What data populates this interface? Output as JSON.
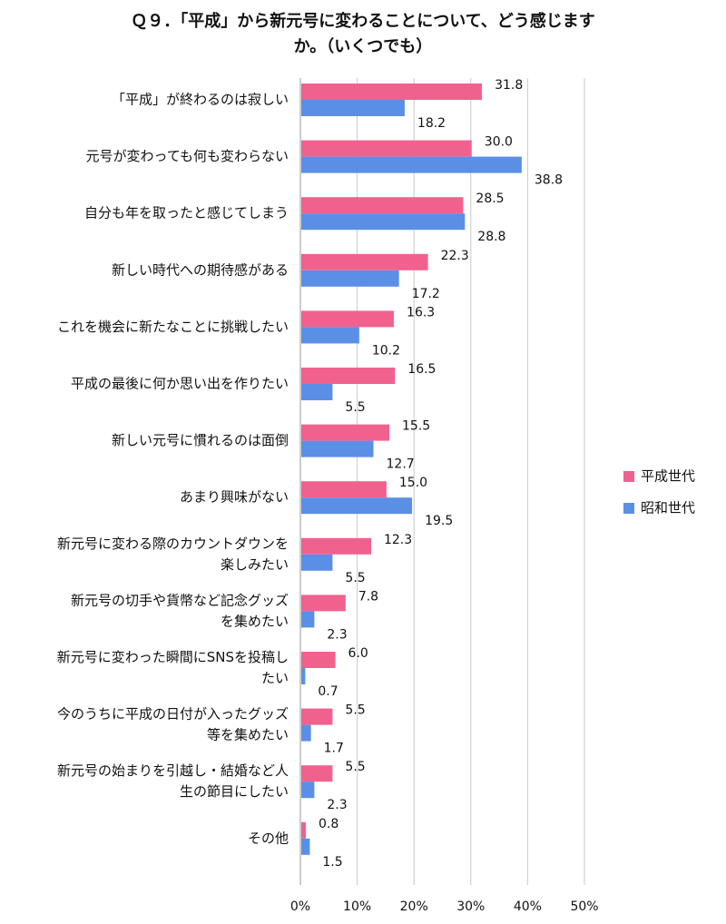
{
  "chart_data": {
    "type": "bar",
    "orientation": "horizontal",
    "title_lines": [
      "Ｑ９．「平成」から新元号に変わることについて、どう感じます",
      "か。（いくつでも）"
    ],
    "categories": [
      [
        "「平成」が終わるのは寂しい"
      ],
      [
        "元号が変わっても何も変わらない"
      ],
      [
        "自分も年を取ったと感じてしまう"
      ],
      [
        "新しい時代への期待感がある"
      ],
      [
        "これを機会に新たなことに挑戦したい"
      ],
      [
        "平成の最後に何か思い出を作りたい"
      ],
      [
        "新しい元号に慣れるのは面倒"
      ],
      [
        "あまり興味がない"
      ],
      [
        "新元号に変わる際のカウントダウンを",
        "楽しみたい"
      ],
      [
        "新元号の切手や貨幣など記念グッズ",
        "を集めたい"
      ],
      [
        "新元号に変わった瞬間にSNSを投稿し",
        "たい"
      ],
      [
        "今のうちに平成の日付が入ったグッズ",
        "等を集めたい"
      ],
      [
        "新元号の始まりを引越し・結婚など人",
        "生の節目にしたい"
      ],
      [
        "その他"
      ]
    ],
    "series": [
      {
        "name": "平成世代",
        "color": "#f0628d",
        "values": [
          31.8,
          30.0,
          28.5,
          22.3,
          16.3,
          16.5,
          15.5,
          15.0,
          12.3,
          7.8,
          6.0,
          5.5,
          5.5,
          0.8
        ],
        "labels": [
          "31.8",
          "30.0",
          "28.5",
          "22.3",
          "16.3",
          "16.5",
          "15.5",
          "15.0",
          "12.3",
          "7.8",
          "6.0",
          "5.5",
          "5.5",
          "0.8"
        ]
      },
      {
        "name": "昭和世代",
        "color": "#5b8fe6",
        "values": [
          18.2,
          38.8,
          28.8,
          17.2,
          10.2,
          5.5,
          12.7,
          19.5,
          5.5,
          2.3,
          0.7,
          1.7,
          2.3,
          1.5
        ],
        "labels": [
          "18.2",
          "38.8",
          "28.8",
          "17.2",
          "10.2",
          "5.5",
          "12.7",
          "19.5",
          "5.5",
          "2.3",
          "0.7",
          "1.7",
          "2.3",
          "1.5"
        ]
      }
    ],
    "xlim": [
      0,
      50
    ],
    "xticks": [
      "0%",
      "10%",
      "20%",
      "30%",
      "40%",
      "50%"
    ],
    "grid": true,
    "legend_position": "right"
  }
}
